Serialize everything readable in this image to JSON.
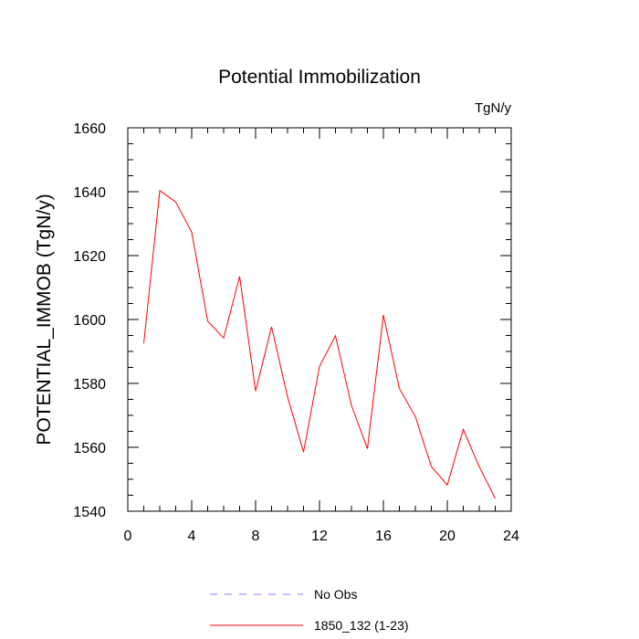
{
  "chart_data": {
    "type": "line",
    "title": "Potential Immobilization",
    "units_label": "TgN/y",
    "xlabel": "",
    "ylabel": "POTENTIAL_IMMOB  (TgN/y)",
    "xlim": [
      0,
      24
    ],
    "ylim": [
      1540,
      1660
    ],
    "x_ticks": [
      0,
      4,
      8,
      12,
      16,
      20,
      24
    ],
    "y_ticks": [
      1540,
      1560,
      1580,
      1600,
      1620,
      1640,
      1660
    ],
    "x_minor_step": 1,
    "y_minor_step": 5,
    "grid": false,
    "legend_position": "bottom",
    "series": [
      {
        "name": "1850_132 (1-23)",
        "color": "#ff0000",
        "dash": "solid",
        "x": [
          1,
          2,
          3,
          4,
          5,
          6,
          7,
          8,
          9,
          10,
          11,
          12,
          13,
          14,
          15,
          16,
          17,
          18,
          19,
          20,
          21,
          22,
          23
        ],
        "values": [
          1592.5,
          1640.3,
          1636.8,
          1627.3,
          1599.5,
          1594.2,
          1613.5,
          1577.6,
          1597.7,
          1575.8,
          1558.5,
          1585.3,
          1594.9,
          1573.1,
          1559.6,
          1601.4,
          1578.4,
          1569.6,
          1554.0,
          1548.2,
          1565.6,
          1553.9,
          1544.0
        ]
      }
    ],
    "legend": [
      {
        "label": "No Obs",
        "color": "#8080ff",
        "dash": "dashed"
      },
      {
        "label": "1850_132 (1-23)",
        "color": "#ff0000",
        "dash": "solid"
      }
    ]
  }
}
